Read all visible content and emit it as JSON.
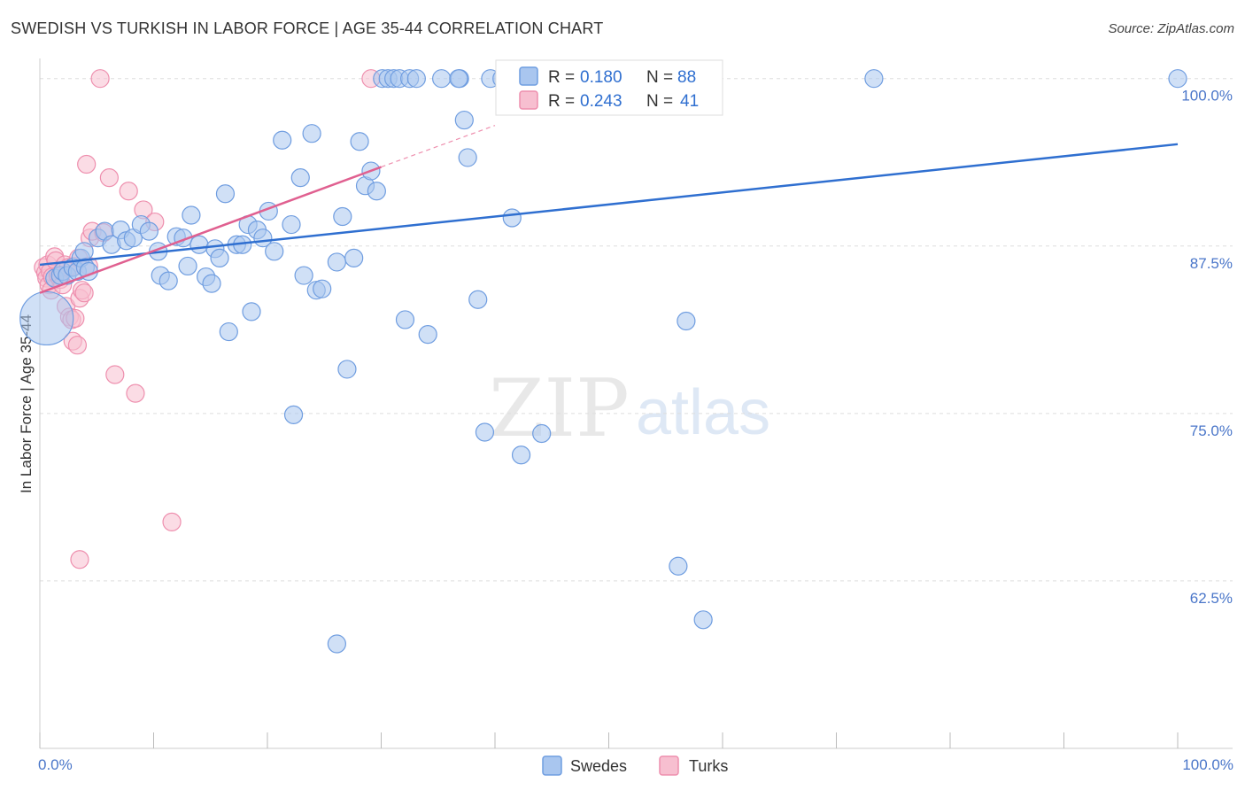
{
  "header": {
    "title": "SWEDISH VS TURKISH IN LABOR FORCE | AGE 35-44 CORRELATION CHART",
    "source": "Source: ZipAtlas.com"
  },
  "watermark": {
    "zip": "ZIP",
    "atlas": "atlas"
  },
  "colors": {
    "swedes_fill": "#a9c6ef",
    "swedes_stroke": "#6f9de0",
    "swedes_line": "#2f6fd0",
    "turks_fill": "#f7bfd0",
    "turks_stroke": "#ee8fae",
    "turks_line": "#e06090",
    "tick_text": "#4a76c9",
    "grid": "#dddddd"
  },
  "legend": {
    "rows": [
      {
        "r_label": "R =",
        "r_value": "0.180",
        "n_label": "N =",
        "n_value": "88"
      },
      {
        "r_label": "R =",
        "r_value": "0.243",
        "n_label": "N =",
        "n_value": "41"
      }
    ]
  },
  "bottom_legend": {
    "items": [
      "Swedes",
      "Turks"
    ]
  },
  "chart_data": {
    "type": "scatter",
    "title": "SWEDISH VS TURKISH IN LABOR FORCE | AGE 35-44 CORRELATION CHART",
    "xlabel": "",
    "ylabel": "In Labor Force | Age 35-44",
    "xlim": [
      0,
      100
    ],
    "ylim": [
      50,
      101.5
    ],
    "x_tick_labels": [
      "0.0%",
      "100.0%"
    ],
    "y_ticks": [
      {
        "value": 100.0,
        "label": "100.0%"
      },
      {
        "value": 87.5,
        "label": "87.5%"
      },
      {
        "value": 75.0,
        "label": "75.0%"
      },
      {
        "value": 62.5,
        "label": "62.5%"
      }
    ],
    "series": [
      {
        "name": "Swedes",
        "r": 0.18,
        "n": 88,
        "trend": {
          "x0": 0,
          "y0": 86.1,
          "x1": 100,
          "y1": 95.1
        },
        "points": [
          [
            0.6,
            82.1,
            30
          ],
          [
            1.3,
            85.1,
            10
          ],
          [
            1.8,
            85.3,
            10
          ],
          [
            2.0,
            85.6,
            10
          ],
          [
            2.4,
            85.3,
            10
          ],
          [
            2.9,
            85.9,
            10
          ],
          [
            3.3,
            85.6,
            10
          ],
          [
            3.6,
            86.6,
            10
          ],
          [
            3.9,
            87.1,
            10
          ],
          [
            4.0,
            85.9,
            10
          ],
          [
            4.3,
            85.6,
            10
          ],
          [
            5.1,
            88.1,
            10
          ],
          [
            5.7,
            88.6,
            10
          ],
          [
            6.3,
            87.6,
            10
          ],
          [
            7.1,
            88.7,
            10
          ],
          [
            7.6,
            87.9,
            10
          ],
          [
            8.2,
            88.1,
            10
          ],
          [
            8.9,
            89.1,
            10
          ],
          [
            9.6,
            88.6,
            10
          ],
          [
            10.4,
            87.1,
            10
          ],
          [
            10.6,
            85.3,
            10
          ],
          [
            11.3,
            84.9,
            10
          ],
          [
            12.0,
            88.2,
            10
          ],
          [
            12.6,
            88.1,
            10
          ],
          [
            13.0,
            86.0,
            10
          ],
          [
            13.3,
            89.8,
            10
          ],
          [
            14.0,
            87.6,
            10
          ],
          [
            14.6,
            85.2,
            10
          ],
          [
            15.1,
            84.7,
            10
          ],
          [
            15.4,
            87.3,
            10
          ],
          [
            15.8,
            86.6,
            10
          ],
          [
            16.3,
            91.4,
            10
          ],
          [
            16.6,
            81.1,
            10
          ],
          [
            17.3,
            87.6,
            10
          ],
          [
            17.8,
            87.6,
            10
          ],
          [
            18.3,
            89.1,
            10
          ],
          [
            18.6,
            82.6,
            10
          ],
          [
            19.1,
            88.7,
            10
          ],
          [
            19.6,
            88.1,
            10
          ],
          [
            20.1,
            90.1,
            10
          ],
          [
            20.6,
            87.1,
            10
          ],
          [
            21.3,
            95.4,
            10
          ],
          [
            22.1,
            89.1,
            10
          ],
          [
            22.3,
            74.9,
            10
          ],
          [
            22.9,
            92.6,
            10
          ],
          [
            23.2,
            85.3,
            10
          ],
          [
            23.9,
            95.9,
            10
          ],
          [
            24.3,
            84.2,
            10
          ],
          [
            24.8,
            84.3,
            10
          ],
          [
            26.1,
            86.3,
            10
          ],
          [
            26.6,
            89.7,
            10
          ],
          [
            27.0,
            78.3,
            10
          ],
          [
            27.6,
            86.6,
            10
          ],
          [
            28.1,
            95.3,
            10
          ],
          [
            28.6,
            92.0,
            10
          ],
          [
            29.1,
            93.1,
            10
          ],
          [
            29.6,
            91.6,
            10
          ],
          [
            30.1,
            100.0,
            10
          ],
          [
            30.6,
            100.0,
            10
          ],
          [
            31.1,
            100.0,
            10
          ],
          [
            31.6,
            100.0,
            10
          ],
          [
            32.1,
            82.0,
            10
          ],
          [
            32.5,
            100.0,
            10
          ],
          [
            33.1,
            100.0,
            10
          ],
          [
            34.1,
            80.9,
            10
          ],
          [
            35.3,
            100.0,
            10
          ],
          [
            36.9,
            100.0,
            10
          ],
          [
            36.8,
            100.0,
            10
          ],
          [
            37.3,
            96.9,
            10
          ],
          [
            37.6,
            94.1,
            10
          ],
          [
            38.5,
            83.5,
            10
          ],
          [
            39.1,
            73.6,
            10
          ],
          [
            39.6,
            100.0,
            10
          ],
          [
            40.6,
            100.0,
            10
          ],
          [
            41.5,
            89.6,
            10
          ],
          [
            41.8,
            100.0,
            10
          ],
          [
            42.3,
            71.9,
            10
          ],
          [
            42.9,
            100.0,
            10
          ],
          [
            44.1,
            73.5,
            10
          ],
          [
            45.1,
            100.0,
            10
          ],
          [
            46.3,
            100.0,
            10
          ],
          [
            47.3,
            100.0,
            10
          ],
          [
            56.1,
            63.6,
            10
          ],
          [
            56.8,
            81.9,
            10
          ],
          [
            58.3,
            59.6,
            10
          ],
          [
            73.3,
            100.0,
            10
          ],
          [
            100.0,
            100.0,
            10
          ],
          [
            26.1,
            57.8,
            10
          ]
        ]
      },
      {
        "name": "Turks",
        "r": 0.243,
        "n": 41,
        "trend": {
          "x0": 0,
          "y0": 84.0,
          "x1": 30,
          "y1": 93.4
        },
        "trend_extension": {
          "x0": 30,
          "y0": 93.4,
          "x1": 40,
          "y1": 96.5
        },
        "points": [
          [
            0.3,
            85.9,
            10
          ],
          [
            0.5,
            85.5,
            10
          ],
          [
            0.6,
            85.1,
            10
          ],
          [
            0.7,
            86.1,
            10
          ],
          [
            0.8,
            84.6,
            10
          ],
          [
            0.9,
            85.6,
            10
          ],
          [
            1.0,
            84.2,
            10
          ],
          [
            1.1,
            85.2,
            10
          ],
          [
            1.3,
            86.7,
            10
          ],
          [
            1.4,
            86.4,
            10
          ],
          [
            1.6,
            85.3,
            10
          ],
          [
            1.8,
            85.0,
            10
          ],
          [
            2.0,
            84.6,
            10
          ],
          [
            2.2,
            86.1,
            10
          ],
          [
            2.3,
            83.0,
            10
          ],
          [
            2.5,
            85.9,
            10
          ],
          [
            2.6,
            82.2,
            10
          ],
          [
            2.8,
            82.0,
            10
          ],
          [
            2.9,
            80.4,
            10
          ],
          [
            3.0,
            86.0,
            10
          ],
          [
            3.1,
            82.1,
            10
          ],
          [
            3.3,
            80.1,
            10
          ],
          [
            3.4,
            86.6,
            10
          ],
          [
            3.5,
            83.6,
            10
          ],
          [
            3.7,
            84.2,
            10
          ],
          [
            3.9,
            84.0,
            10
          ],
          [
            4.1,
            93.6,
            10
          ],
          [
            4.3,
            86.0,
            10
          ],
          [
            4.4,
            88.1,
            10
          ],
          [
            4.6,
            88.6,
            10
          ],
          [
            5.3,
            100.0,
            10
          ],
          [
            5.6,
            88.5,
            10
          ],
          [
            6.1,
            92.6,
            10
          ],
          [
            6.6,
            77.9,
            10
          ],
          [
            7.8,
            91.6,
            10
          ],
          [
            8.4,
            76.5,
            10
          ],
          [
            9.1,
            90.2,
            10
          ],
          [
            10.1,
            89.3,
            10
          ],
          [
            11.6,
            66.9,
            10
          ],
          [
            3.5,
            64.1,
            10
          ],
          [
            29.1,
            100.0,
            10
          ]
        ]
      }
    ]
  }
}
